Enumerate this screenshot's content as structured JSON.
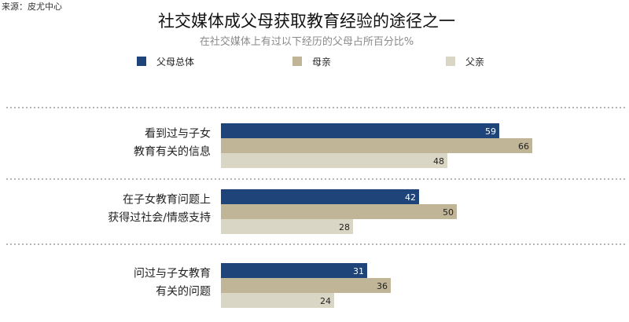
{
  "source": "来源：皮尤中心",
  "colors": {
    "parents_overall": "#1f4479",
    "mothers": "#c0b596",
    "fathers": "#dad6c5"
  },
  "chart_data": {
    "type": "bar",
    "orientation": "horizontal",
    "title": "社交媒体成父母获取教育经验的途径之一",
    "subtitle": "在社交媒体上有过以下经历的父母占所百分比%",
    "legend_position": "top",
    "categories": [
      [
        "看到过与子女",
        "教育有关的信息"
      ],
      [
        "在子女教育问题上",
        "获得过社会/情感支持"
      ],
      [
        "问过与子女教育",
        "有关的问题"
      ]
    ],
    "series": [
      {
        "name": "父母总体",
        "color": "#1f4479",
        "values": [
          59,
          42,
          31
        ]
      },
      {
        "name": "母亲",
        "color": "#c0b596",
        "values": [
          66,
          50,
          36
        ]
      },
      {
        "name": "父亲",
        "color": "#dad6c5",
        "values": [
          48,
          28,
          24
        ]
      }
    ],
    "xlim": [
      0,
      100
    ],
    "grid": false,
    "data_labels": true
  }
}
